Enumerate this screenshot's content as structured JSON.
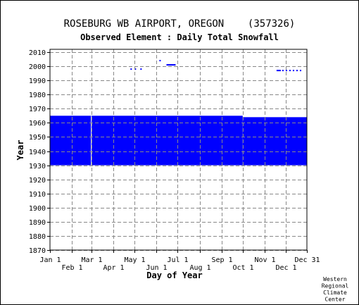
{
  "chart_data": {
    "type": "heatmap",
    "title": "ROSEBURG WB AIRPORT, OREGON    (357326)",
    "subtitle": "Observed Element : Daily Total Snowfall",
    "xlabel": "Day of Year",
    "ylabel": "Year",
    "x_ticks_row1": [
      {
        "label": "Jan 1",
        "day": 1
      },
      {
        "label": "Mar 1",
        "day": 60
      },
      {
        "label": "May 1",
        "day": 121
      },
      {
        "label": "Jul 1",
        "day": 182
      },
      {
        "label": "Sep 1",
        "day": 244
      },
      {
        "label": "Nov 1",
        "day": 305
      },
      {
        "label": "Dec 31",
        "day": 365
      }
    ],
    "x_ticks_row2": [
      {
        "label": "Feb 1",
        "day": 32
      },
      {
        "label": "Apr 1",
        "day": 91
      },
      {
        "label": "Jun 1",
        "day": 152
      },
      {
        "label": "Aug 1",
        "day": 213
      },
      {
        "label": "Oct 1",
        "day": 274
      },
      {
        "label": "Dec 1",
        "day": 335
      }
    ],
    "y_ticks": [
      1870,
      1880,
      1890,
      1900,
      1910,
      1920,
      1930,
      1940,
      1950,
      1960,
      1970,
      1980,
      1990,
      2000,
      2010
    ],
    "xlim": [
      1,
      365
    ],
    "ylim": [
      1870,
      2012
    ],
    "grid": true,
    "color": "#0000ff",
    "gap_color": "#ffffff",
    "observed_blocks": [
      {
        "day_start": 1,
        "day_end": 274,
        "year_start": 1930,
        "year_end": 1965
      },
      {
        "day_start": 274,
        "day_end": 365,
        "year_start": 1930,
        "year_end": 1964
      }
    ],
    "gaps": [
      {
        "day_start": 59,
        "day_end": 60,
        "year_start": 1930,
        "year_end": 1965
      }
    ],
    "observed_marks": [
      {
        "day_start": 115,
        "day_end": 117,
        "year": 1998
      },
      {
        "day_start": 121,
        "day_end": 123,
        "year": 1998
      },
      {
        "day_start": 129,
        "day_end": 131,
        "year": 1998
      },
      {
        "day_start": 156,
        "day_end": 158,
        "year": 2004
      },
      {
        "day_start": 166,
        "day_end": 179,
        "year": 2001
      },
      {
        "day_start": 322,
        "day_end": 328,
        "year": 1997
      },
      {
        "day_start": 330,
        "day_end": 332,
        "year": 1997
      },
      {
        "day_start": 335,
        "day_end": 337,
        "year": 1997
      },
      {
        "day_start": 340,
        "day_end": 342,
        "year": 1997
      },
      {
        "day_start": 345,
        "day_end": 347,
        "year": 1997
      },
      {
        "day_start": 350,
        "day_end": 352,
        "year": 1997
      },
      {
        "day_start": 355,
        "day_end": 357,
        "year": 1997
      }
    ],
    "credit": [
      "Western",
      "Regional",
      "Climate",
      "Center"
    ]
  }
}
